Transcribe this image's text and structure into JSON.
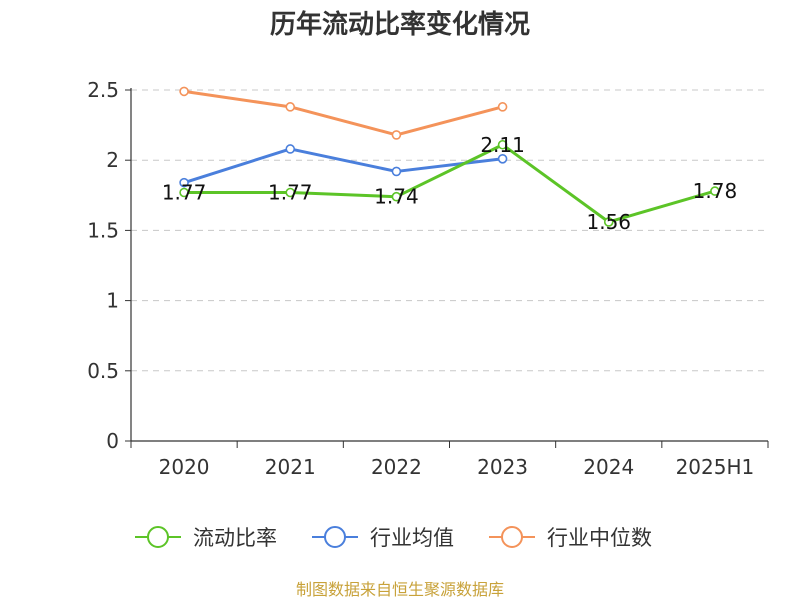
{
  "chart_data": {
    "type": "line",
    "title": "历年流动比率变化情况",
    "categories": [
      "2020",
      "2021",
      "2022",
      "2023",
      "2024",
      "2025H1"
    ],
    "ylim": [
      0,
      2.5
    ],
    "yticks": [
      "0",
      "0.5",
      "1",
      "1.5",
      "2",
      "2.5"
    ],
    "grid": true,
    "legend_position": "bottom",
    "series": [
      {
        "name": "流动比率",
        "color": "#5cc427",
        "values": [
          1.77,
          1.77,
          1.74,
          2.11,
          1.56,
          1.78
        ],
        "labels": [
          "1.77",
          "1.77",
          "1.74",
          "2.11",
          "1.56",
          "1.78"
        ]
      },
      {
        "name": "行业均值",
        "color": "#4a7fdc",
        "values": [
          1.84,
          2.08,
          1.92,
          2.01,
          null,
          null
        ]
      },
      {
        "name": "行业中位数",
        "color": "#f4935a",
        "values": [
          2.49,
          2.38,
          2.18,
          2.38,
          null,
          null
        ]
      }
    ]
  },
  "source_text": "制图数据来自恒生聚源数据库"
}
